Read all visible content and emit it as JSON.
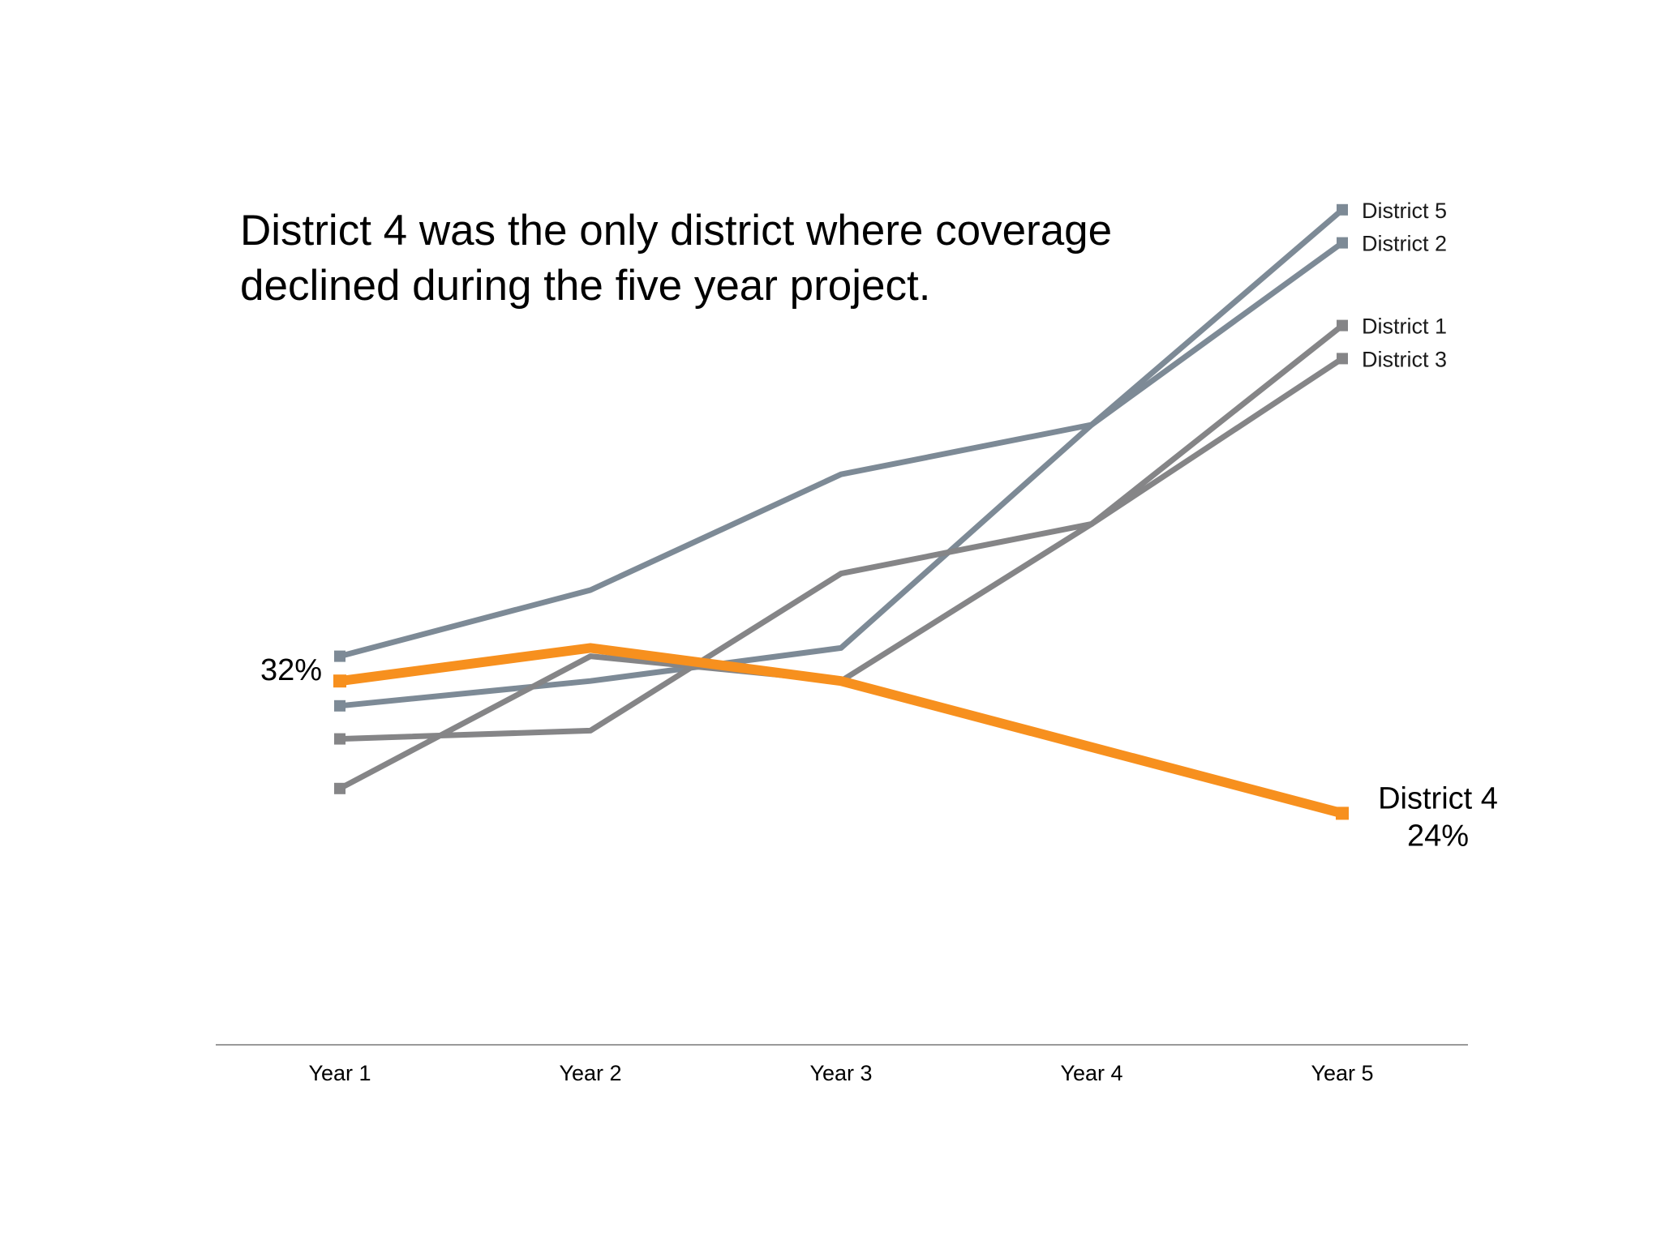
{
  "chart_data": {
    "type": "line",
    "title_lines": [
      "District 4 was the only district where coverage",
      "declined during the five year project."
    ],
    "xlabel": "",
    "ylabel": "",
    "categories": [
      "Year 1",
      "Year 2",
      "Year 3",
      "Year 4",
      "Year 5"
    ],
    "ylim": [
      10,
      50
    ],
    "grid": false,
    "series": [
      {
        "name": "District 5",
        "values": [
          33.5,
          37.5,
          44.5,
          47.5,
          60.5
        ],
        "color": "#7d8a96",
        "highlight": false
      },
      {
        "name": "District 2",
        "values": [
          30.5,
          32.0,
          34.0,
          47.5,
          58.5
        ],
        "color": "#7d8a96",
        "highlight": false
      },
      {
        "name": "District 1",
        "values": [
          25.5,
          33.5,
          32.0,
          41.5,
          53.5
        ],
        "color": "#858587",
        "highlight": false
      },
      {
        "name": "District 3",
        "values": [
          28.5,
          29.0,
          38.5,
          41.5,
          51.5
        ],
        "color": "#858587",
        "highlight": false
      },
      {
        "name": "District 4",
        "values": [
          32.0,
          34.0,
          32.0,
          28.0,
          24.0
        ],
        "color": "#f7901e",
        "highlight": true
      }
    ],
    "annotations": {
      "start_value": "32%",
      "end_name": "District 4",
      "end_value": "24%"
    }
  }
}
